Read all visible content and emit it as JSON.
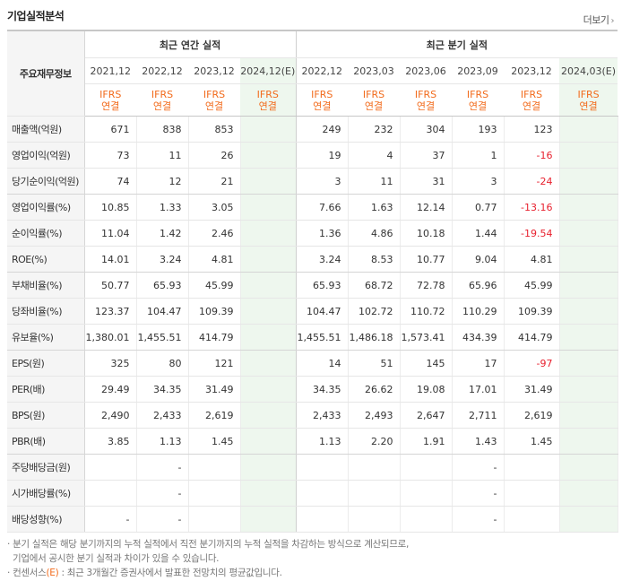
{
  "header": {
    "title": "기업실적분석",
    "more_label": "더보기"
  },
  "table": {
    "corner_label": "주요재무정보",
    "group_annual": "최근 연간 실적",
    "group_quarter": "최근 분기 실적",
    "periods": [
      "2021,12",
      "2022,12",
      "2023,12",
      "2024,12(E)",
      "2022,12",
      "2023,03",
      "2023,06",
      "2023,09",
      "2023,12",
      "2024,03(E)"
    ],
    "basis_line1": "IFRS",
    "basis_line2": "연결",
    "rows": [
      {
        "label": "매출액(억원)",
        "values": [
          "671",
          "838",
          "853",
          "",
          "249",
          "232",
          "304",
          "193",
          "123",
          ""
        ]
      },
      {
        "label": "영업이익(억원)",
        "values": [
          "73",
          "11",
          "26",
          "",
          "19",
          "4",
          "37",
          "1",
          "-16",
          ""
        ]
      },
      {
        "label": "당기순이익(억원)",
        "values": [
          "74",
          "12",
          "21",
          "",
          "3",
          "11",
          "31",
          "3",
          "-24",
          ""
        ]
      },
      {
        "label": "영업이익률(%)",
        "values": [
          "10.85",
          "1.33",
          "3.05",
          "",
          "7.66",
          "1.63",
          "12.14",
          "0.77",
          "-13.16",
          ""
        ]
      },
      {
        "label": "순이익률(%)",
        "values": [
          "11.04",
          "1.42",
          "2.46",
          "",
          "1.36",
          "4.86",
          "10.18",
          "1.44",
          "-19.54",
          ""
        ]
      },
      {
        "label": "ROE(%)",
        "values": [
          "14.01",
          "3.24",
          "4.81",
          "",
          "3.24",
          "8.53",
          "10.77",
          "9.04",
          "4.81",
          ""
        ]
      },
      {
        "label": "부채비율(%)",
        "values": [
          "50.77",
          "65.93",
          "45.99",
          "",
          "65.93",
          "68.72",
          "72.78",
          "65.96",
          "45.99",
          ""
        ]
      },
      {
        "label": "당좌비율(%)",
        "values": [
          "123.37",
          "104.47",
          "109.39",
          "",
          "104.47",
          "102.72",
          "110.72",
          "110.29",
          "109.39",
          ""
        ]
      },
      {
        "label": "유보율(%)",
        "values": [
          "1,380.01",
          "1,455.51",
          "414.79",
          "",
          "1,455.51",
          "1,486.18",
          "1,573.41",
          "434.39",
          "414.79",
          ""
        ]
      },
      {
        "label": "EPS(원)",
        "values": [
          "325",
          "80",
          "121",
          "",
          "14",
          "51",
          "145",
          "17",
          "-97",
          ""
        ]
      },
      {
        "label": "PER(배)",
        "values": [
          "29.49",
          "34.35",
          "31.49",
          "",
          "34.35",
          "26.62",
          "19.08",
          "17.01",
          "31.49",
          ""
        ]
      },
      {
        "label": "BPS(원)",
        "values": [
          "2,490",
          "2,433",
          "2,619",
          "",
          "2,433",
          "2,493",
          "2,647",
          "2,711",
          "2,619",
          ""
        ]
      },
      {
        "label": "PBR(배)",
        "values": [
          "3.85",
          "1.13",
          "1.45",
          "",
          "1.13",
          "2.20",
          "1.91",
          "1.43",
          "1.45",
          ""
        ]
      },
      {
        "label": "주당배당금(원)",
        "values": [
          "",
          "-",
          "",
          "",
          "",
          "",
          "",
          "-",
          "",
          ""
        ]
      },
      {
        "label": "시가배당률(%)",
        "values": [
          "",
          "-",
          "",
          "",
          "",
          "",
          "",
          "-",
          "",
          ""
        ]
      },
      {
        "label": "배당성향(%)",
        "values": [
          "-",
          "-",
          "",
          "",
          "",
          "",
          "",
          "-",
          "",
          ""
        ]
      }
    ]
  },
  "notes": {
    "line1": "· 분기 실적은 해당 분기까지의 누적 실적에서 직전 분기까지의 누적 실적을 차감하는 방식으로 계산되므로,",
    "line2": "기업에서 공시한 분기 실적과 차이가 있을 수 있습니다.",
    "line3_prefix": "· 컨센서스",
    "line3_mark": "(E)",
    "line3_rest": " : 최근 3개월간 증권사에서 발표한 전망치의 평균값입니다."
  }
}
